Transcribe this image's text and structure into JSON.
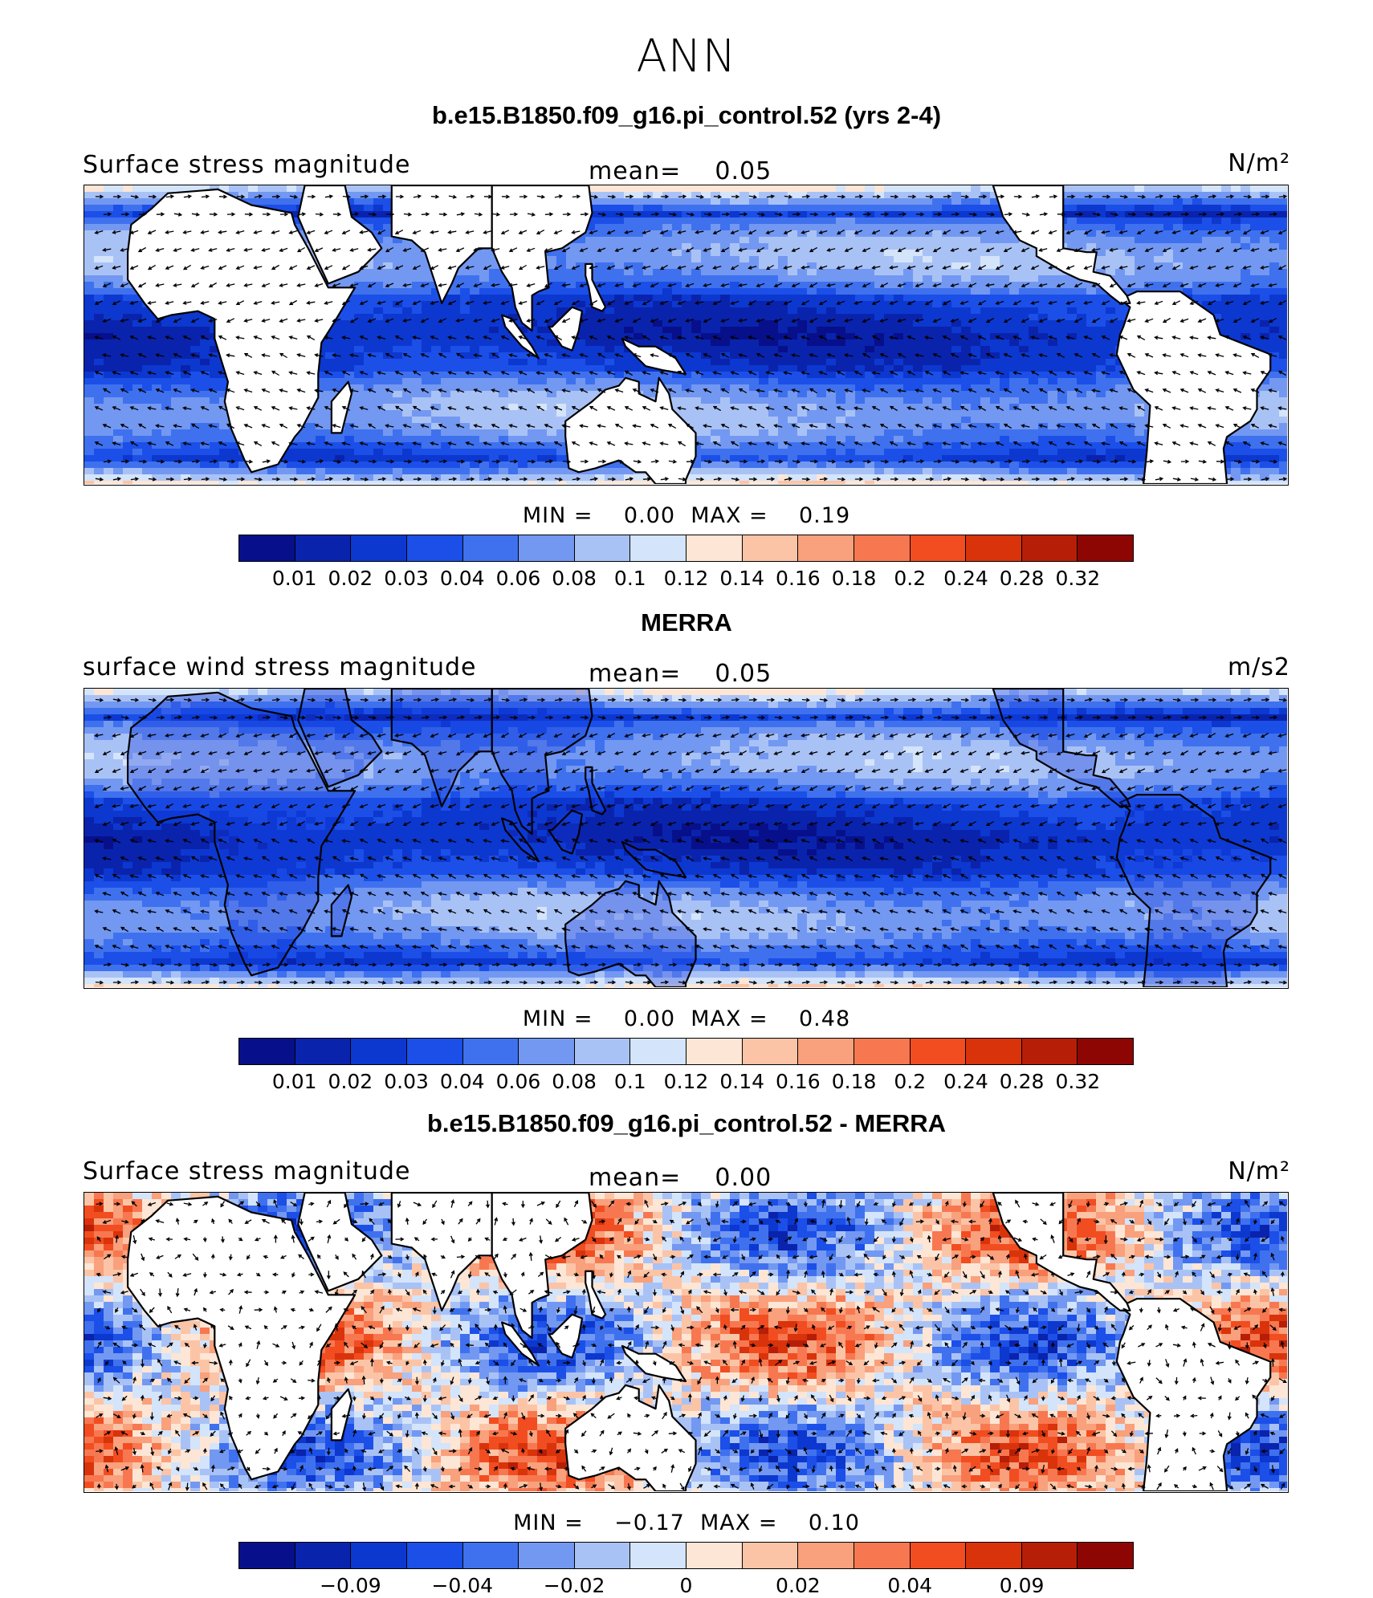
{
  "season": "ANN",
  "colors": [
    "#07108a",
    "#0a23ad",
    "#0c38cf",
    "#1b4fe8",
    "#3f71ee",
    "#7398f2",
    "#a9c2f6",
    "#d4e4fa",
    "#fde6d5",
    "#fcc4a6",
    "#f9a07c",
    "#f77850",
    "#f14d21",
    "#d9330c",
    "#b61e07",
    "#8e0604"
  ],
  "panels": [
    {
      "id": "model",
      "title": "b.e15.B1850.f09_g16.pi_control.52 (yrs 2-4)",
      "left_label": "Surface stress magnitude",
      "mean_label": "mean=",
      "mean_value": "0.05",
      "units": "N/m²",
      "min_label": "MIN =",
      "min_value": "0.00",
      "max_label": "MAX =",
      "max_value": "0.19",
      "land": "masked",
      "tick_labels": [
        "0.01",
        "0.02",
        "0.03",
        "0.04",
        "0.06",
        "0.08",
        "0.1",
        "0.12",
        "0.14",
        "0.16",
        "0.18",
        "0.2",
        "0.24",
        "0.28",
        "0.32"
      ]
    },
    {
      "id": "obs",
      "title": "MERRA",
      "left_label": "surface wind stress magnitude",
      "mean_label": "mean=",
      "mean_value": "0.05",
      "units": "m/s2",
      "min_label": "MIN =",
      "min_value": "0.00",
      "max_label": "MAX =",
      "max_value": "0.48",
      "land": "filled",
      "tick_labels": [
        "0.01",
        "0.02",
        "0.03",
        "0.04",
        "0.06",
        "0.08",
        "0.1",
        "0.12",
        "0.14",
        "0.16",
        "0.18",
        "0.2",
        "0.24",
        "0.28",
        "0.32"
      ]
    },
    {
      "id": "diff",
      "title": "b.e15.B1850.f09_g16.pi_control.52 - MERRA",
      "left_label": "Surface stress magnitude",
      "mean_label": "mean=",
      "mean_value": "0.00",
      "units": "N/m²",
      "min_label": "MIN =",
      "min_value": "−0.17",
      "max_label": "MAX =",
      "max_value": "0.10",
      "land": "masked",
      "tick_labels": [
        "",
        "−0.09",
        "",
        "−0.04",
        "",
        "−0.02",
        "",
        "0",
        "",
        "0.02",
        "",
        "0.04",
        "",
        "0.09",
        ""
      ]
    }
  ]
}
